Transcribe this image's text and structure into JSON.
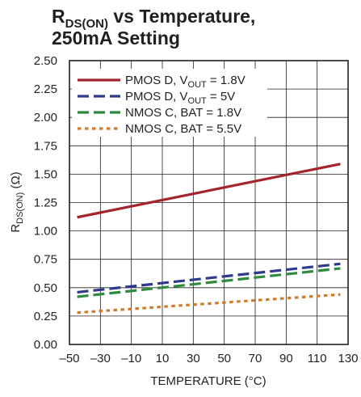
{
  "chart_data": {
    "type": "line",
    "title": {
      "main": "R",
      "sub": "DS(ON)",
      "rest": " vs Temperature,",
      "line2": "250mA Setting"
    },
    "xlabel": "TEMPERATURE (°C)",
    "ylabel": {
      "main": "R",
      "sub": "DS(ON)",
      "rest": " (Ω)"
    },
    "xlim": [
      -50,
      130
    ],
    "ylim": [
      0,
      2.5
    ],
    "xticks": [
      "–50",
      "–30",
      "–10",
      "10",
      "30",
      "50",
      "70",
      "90",
      "110",
      "130"
    ],
    "xtick_values": [
      -50,
      -30,
      -10,
      10,
      30,
      50,
      70,
      90,
      110,
      130
    ],
    "yticks": [
      "0.00",
      "0.25",
      "0.50",
      "0.75",
      "1.00",
      "1.25",
      "1.50",
      "1.75",
      "2.00",
      "2.25",
      "2.50"
    ],
    "ytick_values": [
      0,
      0.25,
      0.5,
      0.75,
      1.0,
      1.25,
      1.5,
      1.75,
      2.0,
      2.25,
      2.5
    ],
    "grid": true,
    "legend_position": "top-left",
    "series": [
      {
        "name": {
          "main": "PMOS D, V",
          "sub": "OUT",
          "rest": " = 1.8V"
        },
        "color": "#a4262c",
        "style": "solid",
        "x": [
          -45,
          125
        ],
        "y": [
          1.12,
          1.59
        ]
      },
      {
        "name": {
          "main": "PMOS D, V",
          "sub": "OUT",
          "rest": " = 5V"
        },
        "color": "#2e3a8c",
        "style": "dashed",
        "x": [
          -45,
          125
        ],
        "y": [
          0.46,
          0.71
        ]
      },
      {
        "name": {
          "main": "NMOS C, BAT = 1.8V",
          "sub": "",
          "rest": ""
        },
        "color": "#2e8b3e",
        "style": "dashed",
        "x": [
          -45,
          125
        ],
        "y": [
          0.42,
          0.67
        ]
      },
      {
        "name": {
          "main": "NMOS C, BAT = 5.5V",
          "sub": "",
          "rest": ""
        },
        "color": "#d17a2a",
        "style": "dotted",
        "x": [
          -45,
          125
        ],
        "y": [
          0.28,
          0.44
        ]
      }
    ]
  }
}
